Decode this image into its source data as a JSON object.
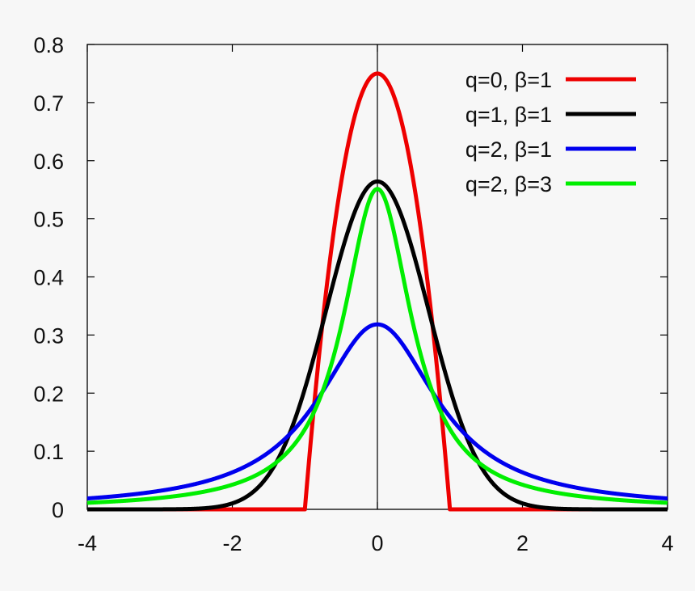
{
  "chart_data": {
    "type": "line",
    "title": "",
    "xlabel": "",
    "ylabel": "",
    "xlim": [
      -4,
      4
    ],
    "ylim": [
      0,
      0.8
    ],
    "x_ticks": [
      "-4",
      "-2",
      "0",
      "2",
      "4"
    ],
    "y_ticks": [
      "0",
      "0.1",
      "0.2",
      "0.3",
      "0.4",
      "0.5",
      "0.6",
      "0.7",
      "0.8"
    ],
    "grid": false,
    "zero_line": true,
    "legend_position": "top-right",
    "series": [
      {
        "name": "q=0, β=1",
        "q": 0,
        "beta": 1,
        "color": "#ee0000"
      },
      {
        "name": "q=1, β=1",
        "q": 1,
        "beta": 1,
        "color": "#000000"
      },
      {
        "name": "q=2, β=1",
        "q": 2,
        "beta": 1,
        "color": "#0000ee"
      },
      {
        "name": "q=2, β=3",
        "q": 2,
        "beta": 3,
        "color": "#00ee00"
      }
    ]
  }
}
